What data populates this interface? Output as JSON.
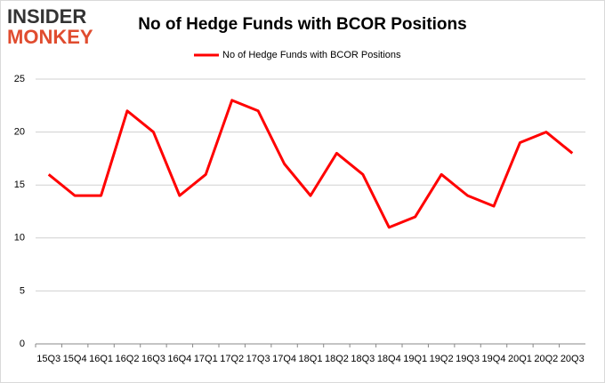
{
  "logo": {
    "line1": "INSIDER",
    "line2": "MONKEY"
  },
  "chart_data": {
    "type": "line",
    "title": "No of Hedge Funds with BCOR Positions",
    "categories": [
      "15Q3",
      "15Q4",
      "16Q1",
      "16Q2",
      "16Q3",
      "16Q4",
      "17Q1",
      "17Q2",
      "17Q3",
      "17Q4",
      "18Q1",
      "18Q2",
      "18Q3",
      "18Q4",
      "19Q1",
      "19Q2",
      "19Q3",
      "19Q4",
      "20Q1",
      "20Q2",
      "20Q3"
    ],
    "series": [
      {
        "name": "No of Hedge Funds with BCOR Positions",
        "color": "#ff0000",
        "values": [
          16,
          14,
          14,
          22,
          20,
          14,
          16,
          23,
          22,
          17,
          14,
          18,
          16,
          11,
          12,
          16,
          14,
          13,
          19,
          20,
          18
        ]
      }
    ],
    "ylim": [
      0,
      25
    ],
    "yticks": [
      0,
      5,
      10,
      15,
      20,
      25
    ],
    "grid": true,
    "legend": "top"
  }
}
